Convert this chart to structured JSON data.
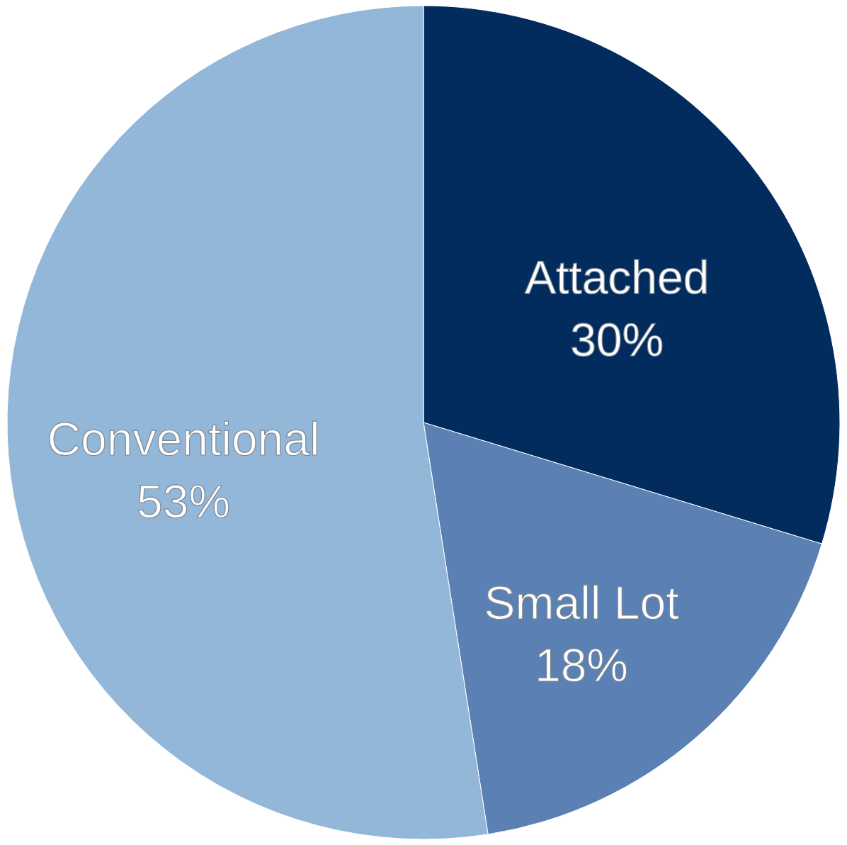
{
  "chart_data": {
    "type": "pie",
    "categories": [
      "Attached",
      "Small Lot",
      "Conventional"
    ],
    "values": [
      30,
      18,
      53
    ],
    "colors": [
      "#022b5e",
      "#5a80b4",
      "#93b7d9"
    ],
    "value_labels": [
      "30%",
      "18%",
      "53%"
    ]
  }
}
